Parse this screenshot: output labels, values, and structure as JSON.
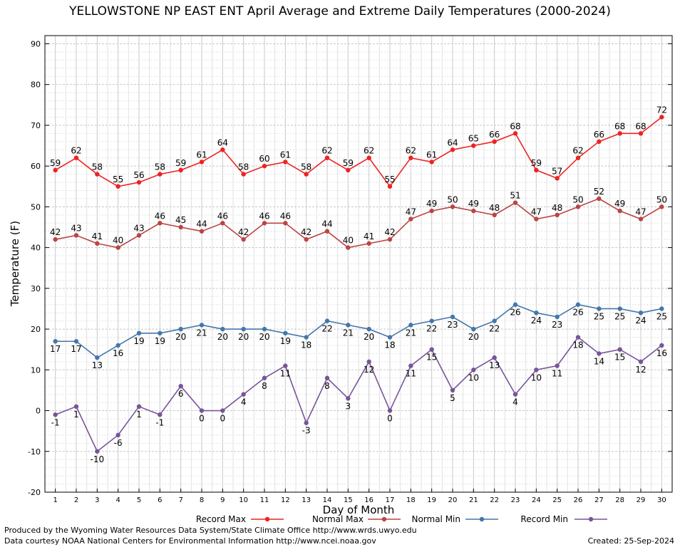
{
  "title": "YELLOWSTONE NP EAST ENT April Average and Extreme Daily Temperatures (2000-2024)",
  "footer": {
    "line1": "Produced by the Wyoming Water Resources Data System/State Climate Office http://www.wrds.uwyo.edu",
    "line2": "Data courtesy NOAA National Centers for Environmental Information http://www.ncei.noaa.gov",
    "created": "Created:  25-Sep-2024"
  },
  "chart_data": {
    "type": "line",
    "title": "YELLOWSTONE NP EAST ENT April Average and Extreme Daily Temperatures (2000-2024)",
    "xlabel": "Day of Month",
    "ylabel": "Temperature (F)",
    "xlim": [
      0.5,
      30.5
    ],
    "ylim": [
      -20,
      92
    ],
    "yticks": [
      -20,
      -10,
      0,
      10,
      20,
      30,
      40,
      50,
      60,
      70,
      80,
      90
    ],
    "x": [
      1,
      2,
      3,
      4,
      5,
      6,
      7,
      8,
      9,
      10,
      11,
      12,
      13,
      14,
      15,
      16,
      17,
      18,
      19,
      20,
      21,
      22,
      23,
      24,
      25,
      26,
      27,
      28,
      29,
      30
    ],
    "grid": true,
    "legend_position": "bottom",
    "series": [
      {
        "name": "Record Max",
        "color": "#ee2222",
        "label_pos": "above",
        "values": [
          59,
          62,
          58,
          55,
          56,
          58,
          59,
          61,
          64,
          58,
          60,
          61,
          58,
          62,
          59,
          62,
          55,
          62,
          61,
          64,
          65,
          66,
          68,
          59,
          57,
          62,
          66,
          68,
          68,
          72
        ]
      },
      {
        "name": "Normal Max",
        "color": "#bb4444",
        "label_pos": "above",
        "values": [
          42,
          43,
          41,
          40,
          43,
          46,
          45,
          44,
          46,
          42,
          46,
          46,
          42,
          44,
          40,
          41,
          42,
          47,
          49,
          50,
          49,
          48,
          51,
          47,
          48,
          50,
          52,
          49,
          47,
          50
        ]
      },
      {
        "name": "Normal Min",
        "color": "#4477aa",
        "label_pos": "below",
        "values": [
          17,
          17,
          13,
          16,
          19,
          19,
          20,
          21,
          20,
          20,
          20,
          19,
          18,
          22,
          21,
          20,
          18,
          21,
          22,
          23,
          20,
          22,
          26,
          24,
          23,
          26,
          25,
          25,
          24,
          25
        ]
      },
      {
        "name": "Record Min",
        "color": "#775599",
        "label_pos": "below",
        "values": [
          -1,
          1,
          -10,
          -6,
          1,
          -1,
          6,
          0,
          0,
          4,
          8,
          11,
          -3,
          8,
          3,
          12,
          0,
          11,
          15,
          5,
          10,
          13,
          4,
          10,
          11,
          18,
          14,
          15,
          12,
          16
        ]
      }
    ]
  }
}
